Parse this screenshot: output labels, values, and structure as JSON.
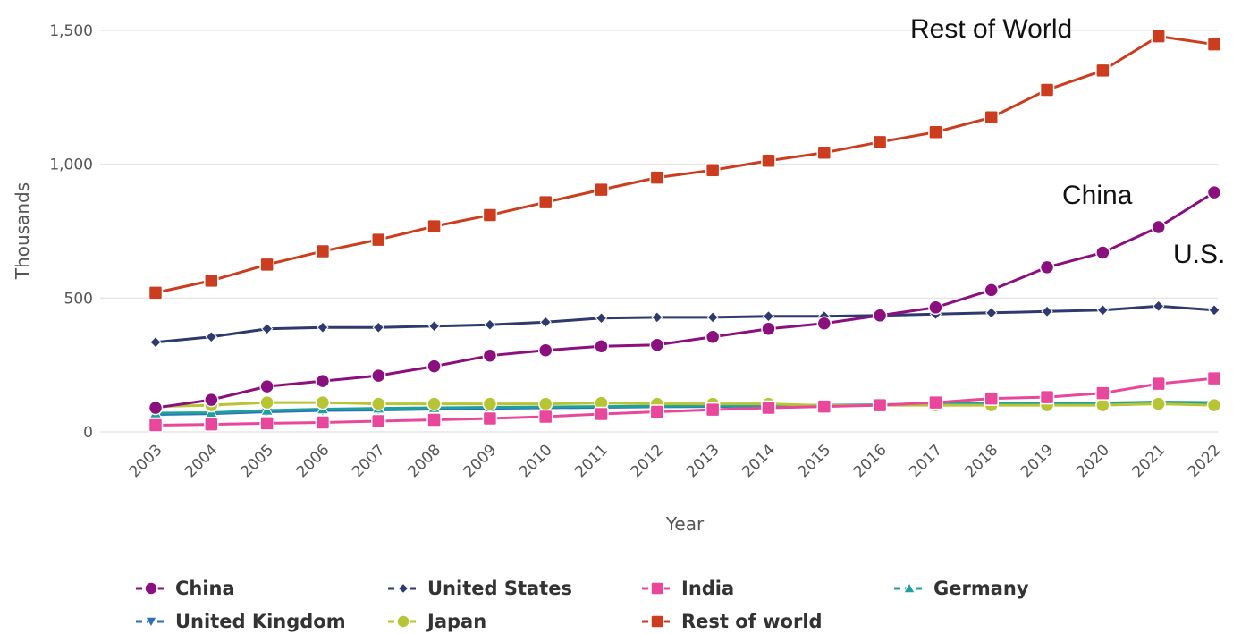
{
  "chart_data": {
    "type": "line",
    "title": "",
    "xlabel": "Year",
    "ylabel": "Thousands",
    "ylim": [
      0,
      1500
    ],
    "yticks": [
      {
        "value": 0,
        "label": "0"
      },
      {
        "value": 500,
        "label": "500"
      },
      {
        "value": 1000,
        "label": "1,000"
      },
      {
        "value": 1500,
        "label": "1,500"
      }
    ],
    "grid": true,
    "legend_position": "bottom",
    "categories": [
      "2003",
      "2004",
      "2005",
      "2006",
      "2007",
      "2008",
      "2009",
      "2010",
      "2011",
      "2012",
      "2013",
      "2014",
      "2015",
      "2016",
      "2017",
      "2018",
      "2019",
      "2020",
      "2021",
      "2022"
    ],
    "series": [
      {
        "name": "China",
        "color": "#8b0f7f",
        "marker": "circle",
        "values": [
          90,
          120,
          170,
          190,
          210,
          245,
          285,
          305,
          320,
          325,
          355,
          385,
          405,
          435,
          465,
          530,
          615,
          670,
          765,
          895
        ]
      },
      {
        "name": "United States",
        "color": "#2e3a6e",
        "marker": "diamond",
        "values": [
          335,
          355,
          385,
          390,
          390,
          395,
          400,
          410,
          425,
          428,
          428,
          432,
          432,
          435,
          440,
          445,
          450,
          455,
          470,
          455
        ]
      },
      {
        "name": "India",
        "color": "#e8479b",
        "marker": "square",
        "values": [
          25,
          28,
          32,
          35,
          40,
          45,
          50,
          57,
          67,
          75,
          83,
          90,
          95,
          100,
          110,
          125,
          130,
          145,
          180,
          200
        ]
      },
      {
        "name": "Germany",
        "color": "#1fa0a0",
        "marker": "triangle",
        "values": [
          70,
          72,
          80,
          85,
          88,
          90,
          92,
          93,
          95,
          96,
          97,
          98,
          100,
          102,
          105,
          106,
          107,
          108,
          112,
          110
        ]
      },
      {
        "name": "United Kingdom",
        "color": "#2a6fb8",
        "marker": "triangle-down",
        "values": [
          65,
          68,
          75,
          80,
          82,
          85,
          88,
          90,
          92,
          94,
          95,
          97,
          98,
          100,
          102,
          103,
          104,
          105,
          108,
          106
        ]
      },
      {
        "name": "Japan",
        "color": "#b7c433",
        "marker": "circle",
        "values": [
          95,
          100,
          110,
          110,
          105,
          105,
          105,
          105,
          108,
          105,
          105,
          105,
          98,
          100,
          100,
          100,
          100,
          100,
          105,
          100
        ]
      },
      {
        "name": "Rest of world",
        "color": "#cc3d1f",
        "marker": "square",
        "values": [
          520,
          565,
          625,
          675,
          718,
          768,
          810,
          858,
          905,
          950,
          978,
          1013,
          1043,
          1083,
          1120,
          1175,
          1278,
          1350,
          1478,
          1448
        ]
      }
    ],
    "annotations": [
      {
        "text": "Rest of World",
        "series": "Rest of world"
      },
      {
        "text": "China",
        "series": "China"
      },
      {
        "text": "U.S.",
        "series": "United States"
      }
    ]
  }
}
